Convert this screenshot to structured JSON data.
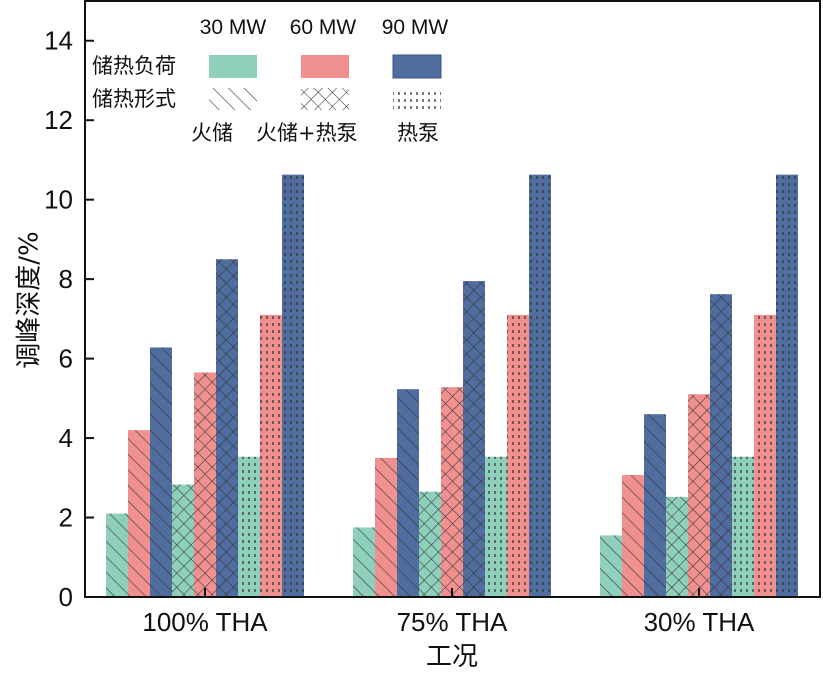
{
  "chart_data": {
    "type": "bar",
    "xlabel": "工况",
    "ylabel": "调峰深度/%",
    "ylim": [
      0,
      15
    ],
    "yticks": [
      "0",
      "2",
      "4",
      "6",
      "8",
      "10",
      "12",
      "14"
    ],
    "categories": [
      "100% THA",
      "75% THA",
      "30% THA"
    ],
    "legend": {
      "load_row_label": "储热负荷",
      "form_row_label": "储热形式",
      "loads": [
        {
          "name": "30 MW",
          "color": "#8fd0bd"
        },
        {
          "name": "60 MW",
          "color": "#f0918f"
        },
        {
          "name": "90 MW",
          "color": "#4f6d9e"
        }
      ],
      "forms": [
        {
          "name": "火储",
          "pattern": "diag"
        },
        {
          "name": "火储+热泵",
          "pattern": "cross"
        },
        {
          "name": "热泵",
          "pattern": "dots"
        }
      ]
    },
    "series": [
      {
        "load": "30 MW",
        "form": "火储",
        "color": "#8fd0bd",
        "pattern": "diag",
        "values": [
          2.1,
          1.75,
          1.55
        ]
      },
      {
        "load": "60 MW",
        "form": "火储",
        "color": "#f0918f",
        "pattern": "diag",
        "values": [
          4.2,
          3.5,
          3.07
        ]
      },
      {
        "load": "90 MW",
        "form": "火储",
        "color": "#4f6d9e",
        "pattern": "diag",
        "values": [
          6.28,
          5.23,
          4.6
        ]
      },
      {
        "load": "30 MW",
        "form": "火储+热泵",
        "color": "#8fd0bd",
        "pattern": "cross",
        "values": [
          2.83,
          2.65,
          2.52
        ]
      },
      {
        "load": "60 MW",
        "form": "火储+热泵",
        "color": "#f0918f",
        "pattern": "cross",
        "values": [
          5.65,
          5.28,
          5.1
        ]
      },
      {
        "load": "90 MW",
        "form": "火储+热泵",
        "color": "#4f6d9e",
        "pattern": "cross",
        "values": [
          8.5,
          7.95,
          7.62
        ]
      },
      {
        "load": "30 MW",
        "form": "热泵",
        "color": "#8fd0bd",
        "pattern": "dots",
        "values": [
          3.53,
          3.53,
          3.53
        ]
      },
      {
        "load": "60 MW",
        "form": "热泵",
        "color": "#f0918f",
        "pattern": "dots",
        "values": [
          7.1,
          7.1,
          7.1
        ]
      },
      {
        "load": "90 MW",
        "form": "热泵",
        "color": "#4f6d9e",
        "pattern": "dots",
        "values": [
          10.63,
          10.63,
          10.63
        ]
      }
    ]
  }
}
